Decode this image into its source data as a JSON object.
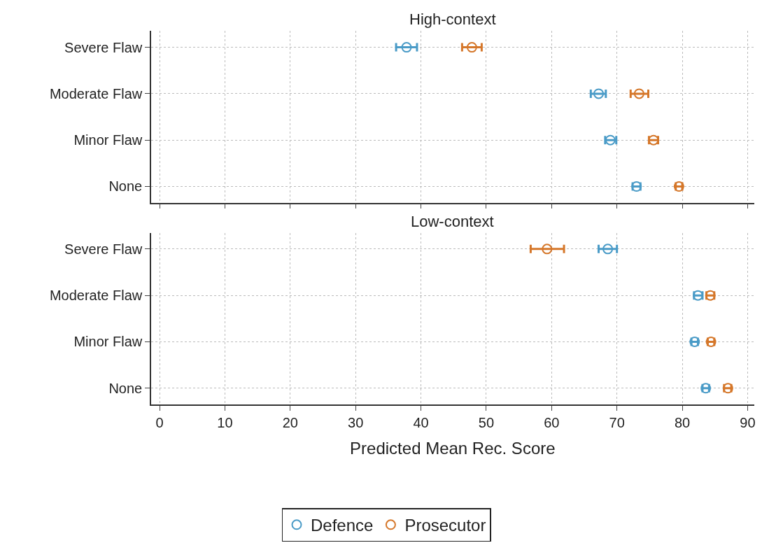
{
  "chart_data": [
    {
      "type": "scatter",
      "title": "High-context",
      "categories": [
        "Severe Flaw",
        "Moderate Flaw",
        "Minor Flaw",
        "None"
      ],
      "orientation": "horizontal",
      "xlim": [
        -1.3,
        91
      ],
      "xticks": [
        0,
        10,
        20,
        30,
        40,
        50,
        60,
        70,
        80,
        90
      ],
      "tick_labels": "y",
      "grid": true,
      "marker": "circle",
      "legend": "bottom",
      "series": [
        {
          "name": "Defence",
          "color": "#4a9bc7",
          "values": [
            37.8,
            67.2,
            69.0,
            73.0
          ],
          "errors": [
            [
              36.2,
              39.4
            ],
            [
              66.0,
              68.3
            ],
            [
              68.2,
              69.9
            ],
            [
              72.4,
              73.6
            ]
          ]
        },
        {
          "name": "Prosecutor",
          "color": "#d5772a",
          "values": [
            47.8,
            73.4,
            75.6,
            79.5
          ],
          "errors": [
            [
              46.3,
              49.3
            ],
            [
              72.1,
              74.8
            ],
            [
              74.9,
              76.3
            ],
            [
              79.0,
              80.0
            ]
          ]
        }
      ]
    },
    {
      "type": "scatter",
      "title": "Low-context",
      "xlabel": "Predicted Mean Rec. Score",
      "categories": [
        "Severe Flaw",
        "Moderate Flaw",
        "Minor Flaw",
        "None"
      ],
      "orientation": "horizontal",
      "xlim": [
        -1.3,
        91
      ],
      "xticks": [
        0,
        10,
        20,
        30,
        40,
        50,
        60,
        70,
        80,
        90
      ],
      "grid": true,
      "marker": "circle",
      "legend": "bottom",
      "series": [
        {
          "name": "Defence",
          "color": "#4a9bc7",
          "values": [
            68.6,
            82.4,
            81.9,
            83.6
          ],
          "errors": [
            [
              67.2,
              70.0
            ],
            [
              81.8,
              83.1
            ],
            [
              81.4,
              82.4
            ],
            [
              83.1,
              84.1
            ]
          ]
        },
        {
          "name": "Prosecutor",
          "color": "#d5772a",
          "values": [
            59.3,
            84.3,
            84.4,
            87.0
          ],
          "errors": [
            [
              56.8,
              61.9
            ],
            [
              83.7,
              84.9
            ],
            [
              83.9,
              84.9
            ],
            [
              86.4,
              87.5
            ]
          ]
        }
      ]
    }
  ]
}
